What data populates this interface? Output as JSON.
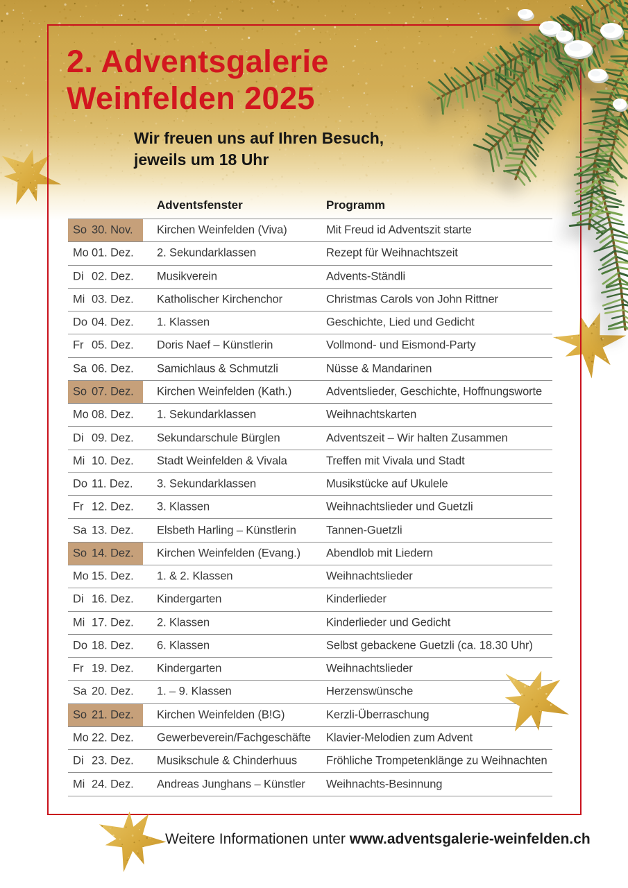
{
  "poster": {
    "title_line1": "2. Adventsgalerie",
    "title_line2": "Weinfelden 2025",
    "subtitle_line1": "Wir freuen uns auf Ihren Besuch,",
    "subtitle_line2": "jeweils um 18 Uhr",
    "footer_prefix": "Weitere Informationen unter ",
    "footer_url": "www.adventsgalerie-weinfelden.ch"
  },
  "colors": {
    "accent_red": "#d2161f",
    "frame_red": "#c9111c",
    "sunday_highlight": "#c6a07a",
    "gold": "#d2ad55",
    "separator_gray": "#8f8f8f"
  },
  "decorations": {
    "branch_icon": "fir-branch-snow-icon",
    "star_icon": "gold-glitter-star-icon"
  },
  "table": {
    "headers": {
      "window": "Adventsfenster",
      "program": "Programm"
    },
    "rows": [
      {
        "day": "So",
        "date": "30. Nov.",
        "window": "Kirchen Weinfelden (Viva)",
        "program": "Mit Freud id Adventszit starte",
        "sunday": true
      },
      {
        "day": "Mo",
        "date": "01. Dez.",
        "window": "2. Sekundarklassen",
        "program": "Rezept für Weihnachtszeit",
        "sunday": false
      },
      {
        "day": "Di",
        "date": "02. Dez.",
        "window": "Musikverein",
        "program": "Advents-Ständli",
        "sunday": false
      },
      {
        "day": "Mi",
        "date": "03. Dez.",
        "window": "Katholischer Kirchenchor",
        "program": "Christmas Carols von John Rittner",
        "sunday": false
      },
      {
        "day": "Do",
        "date": "04. Dez.",
        "window": "1. Klassen",
        "program": "Geschichte, Lied und Gedicht",
        "sunday": false
      },
      {
        "day": "Fr",
        "date": "05. Dez.",
        "window": "Doris Naef – Künstlerin",
        "program": "Vollmond- und Eismond-Party",
        "sunday": false
      },
      {
        "day": "Sa",
        "date": "06. Dez.",
        "window": "Samichlaus & Schmutzli",
        "program": "Nüsse & Mandarinen",
        "sunday": false
      },
      {
        "day": "So",
        "date": "07. Dez.",
        "window": "Kirchen Weinfelden (Kath.)",
        "program": "Adventslieder, Geschichte, Hoffnungsworte",
        "sunday": true
      },
      {
        "day": "Mo",
        "date": "08. Dez.",
        "window": "1. Sekundarklassen",
        "program": "Weihnachtskarten",
        "sunday": false
      },
      {
        "day": "Di",
        "date": "09. Dez.",
        "window": "Sekundarschule Bürglen",
        "program": "Adventszeit – Wir halten Zusammen",
        "sunday": false
      },
      {
        "day": "Mi",
        "date": "10. Dez.",
        "window": "Stadt Weinfelden & Vivala",
        "program": "Treffen mit Vivala und Stadt",
        "sunday": false
      },
      {
        "day": "Do",
        "date": "11. Dez.",
        "window": "3. Sekundarklassen",
        "program": "Musikstücke auf Ukulele",
        "sunday": false
      },
      {
        "day": "Fr",
        "date": "12. Dez.",
        "window": "3. Klassen",
        "program": "Weihnachtslieder und Guetzli",
        "sunday": false
      },
      {
        "day": "Sa",
        "date": "13. Dez.",
        "window": "Elsbeth Harling – Künstlerin",
        "program": "Tannen-Guetzli",
        "sunday": false
      },
      {
        "day": "So",
        "date": "14. Dez.",
        "window": "Kirchen Weinfelden (Evang.)",
        "program": "Abendlob mit Liedern",
        "sunday": true
      },
      {
        "day": "Mo",
        "date": "15. Dez.",
        "window": "1. & 2. Klassen",
        "program": "Weihnachtslieder",
        "sunday": false
      },
      {
        "day": "Di",
        "date": "16. Dez.",
        "window": "Kindergarten",
        "program": "Kinderlieder",
        "sunday": false
      },
      {
        "day": "Mi",
        "date": "17. Dez.",
        "window": "2. Klassen",
        "program": "Kinderlieder und Gedicht",
        "sunday": false
      },
      {
        "day": "Do",
        "date": "18. Dez.",
        "window": "6. Klassen",
        "program": "Selbst gebackene Guetzli (ca. 18.30 Uhr)",
        "sunday": false
      },
      {
        "day": "Fr",
        "date": "19. Dez.",
        "window": "Kindergarten",
        "program": "Weihnachtslieder",
        "sunday": false
      },
      {
        "day": "Sa",
        "date": "20. Dez.",
        "window": "1. – 9. Klassen",
        "program": "Herzenswünsche",
        "sunday": false
      },
      {
        "day": "So",
        "date": "21. Dez.",
        "window": "Kirchen Weinfelden (B!G)",
        "program": "Kerzli-Überraschung",
        "sunday": true
      },
      {
        "day": "Mo",
        "date": "22. Dez.",
        "window": "Gewerbeverein/Fachgeschäfte",
        "program": "Klavier-Melodien zum Advent",
        "sunday": false
      },
      {
        "day": "Di",
        "date": "23. Dez.",
        "window": "Musikschule & Chinderhuus",
        "program": "Fröhliche Trompetenklänge zu Weihnachten",
        "sunday": false
      },
      {
        "day": "Mi",
        "date": "24. Dez.",
        "window": "Andreas Junghans – Künstler",
        "program": "Weihnachts-Besinnung",
        "sunday": false
      }
    ]
  }
}
